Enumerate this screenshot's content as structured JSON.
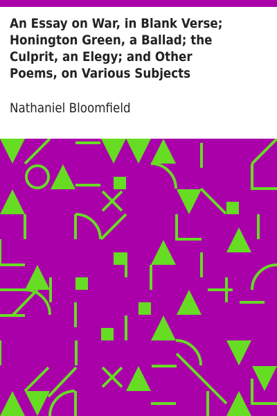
{
  "book": {
    "title": "An Essay on War, in Blank Verse; Honington Green, a Ballad; the Culprit, an Elegy; and Other Poems, on Various Subjects",
    "author": "Nathaniel Bloomfield"
  },
  "colors": {
    "accent_bar": "#aa00aa",
    "pattern_background": "#aa00aa",
    "pattern_shapes": "#66dd22",
    "text": "#222222"
  }
}
